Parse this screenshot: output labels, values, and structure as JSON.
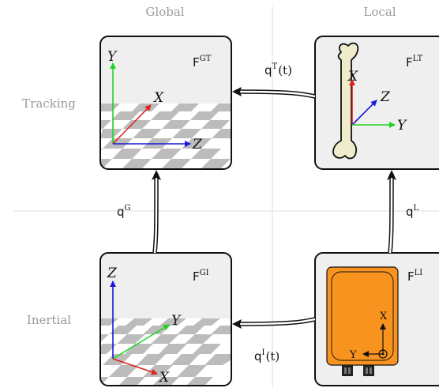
{
  "columns": {
    "global": "Global",
    "local": "Local"
  },
  "rows": {
    "tracking": "Tracking",
    "inertial": "Inertial"
  },
  "frames": {
    "gt": {
      "name": "F",
      "sup": "GT",
      "axes": {
        "up": "Y",
        "diag": "X",
        "horiz": "Z"
      }
    },
    "lt": {
      "name": "F",
      "sup": "LT",
      "axes": {
        "up": "X",
        "diag": "Z",
        "horiz": "Y"
      }
    },
    "gi": {
      "name": "F",
      "sup": "GI",
      "axes": {
        "up": "Z",
        "diag": "Y",
        "down": "X"
      }
    },
    "li": {
      "name": "F",
      "sup": "LI",
      "axes": {
        "up": "X",
        "horiz": "Y"
      }
    }
  },
  "edges": {
    "qT": {
      "name": "q",
      "sup": "T",
      "arg": "(t)"
    },
    "qG": {
      "name": "q",
      "sup": "G",
      "arg": ""
    },
    "qL": {
      "name": "q",
      "sup": "L",
      "arg": ""
    },
    "qI": {
      "name": "q",
      "sup": "I",
      "arg": "(t)"
    }
  },
  "colors": {
    "x_axis": "#e02020",
    "y_axis": "#22d322",
    "z_axis": "#1a1ad8",
    "box_fill": "#efefef",
    "checker": "#bcbcbc",
    "bone": "#eeeccb",
    "sensor": "#f7931e",
    "divider": "#dddddd"
  },
  "icons": [
    "bone-icon",
    "imu-sensor-icon",
    "checkerboard-floor-icon"
  ]
}
